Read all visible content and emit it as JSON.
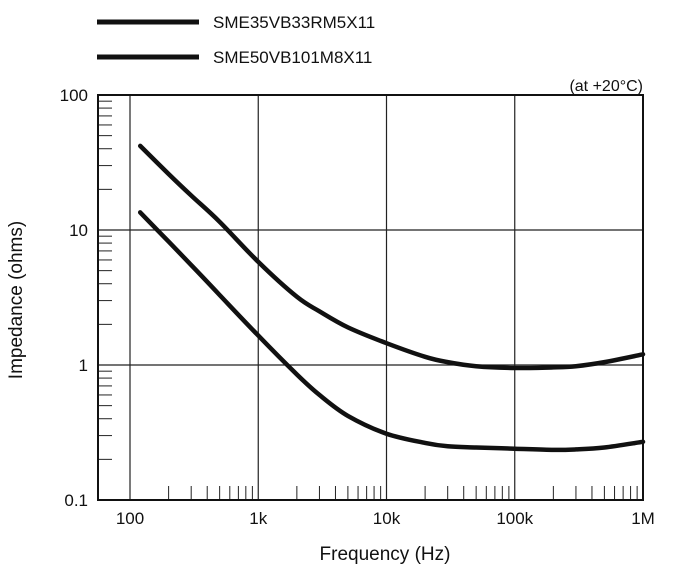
{
  "chart_data": {
    "type": "line",
    "xlabel": "Frequency (Hz)",
    "ylabel": "Impedance (ohms)",
    "annotation": "(at +20°C)",
    "xscale": "log",
    "yscale": "log",
    "xlim": [
      100,
      1000000
    ],
    "ylim": [
      0.1,
      100
    ],
    "x_ticks": [
      100,
      1000,
      10000,
      100000,
      1000000
    ],
    "x_tick_labels": [
      "100",
      "1k",
      "10k",
      "100k",
      "1M"
    ],
    "y_ticks": [
      0.1,
      1,
      10,
      100
    ],
    "y_tick_labels": [
      "0.1",
      "1",
      "10",
      "100"
    ],
    "grid": true,
    "legend_position": "top-left, above plot",
    "series": [
      {
        "name": "SME35VB33RM5X11",
        "color": "#111111",
        "x": [
          120,
          200,
          300,
          500,
          1000,
          2000,
          3000,
          5000,
          10000,
          20000,
          30000,
          50000,
          100000,
          200000,
          300000,
          500000,
          1000000
        ],
        "y": [
          42,
          26,
          18,
          11.5,
          5.8,
          3.2,
          2.5,
          1.9,
          1.45,
          1.15,
          1.05,
          0.98,
          0.95,
          0.96,
          0.98,
          1.05,
          1.2
        ]
      },
      {
        "name": "SME50VB101M8X11",
        "color": "#111111",
        "x": [
          120,
          200,
          300,
          500,
          1000,
          2000,
          3000,
          5000,
          10000,
          20000,
          30000,
          50000,
          100000,
          200000,
          300000,
          500000,
          1000000
        ],
        "y": [
          13.5,
          8.2,
          5.5,
          3.3,
          1.65,
          0.85,
          0.6,
          0.42,
          0.31,
          0.265,
          0.25,
          0.245,
          0.24,
          0.235,
          0.237,
          0.245,
          0.27
        ]
      }
    ]
  }
}
